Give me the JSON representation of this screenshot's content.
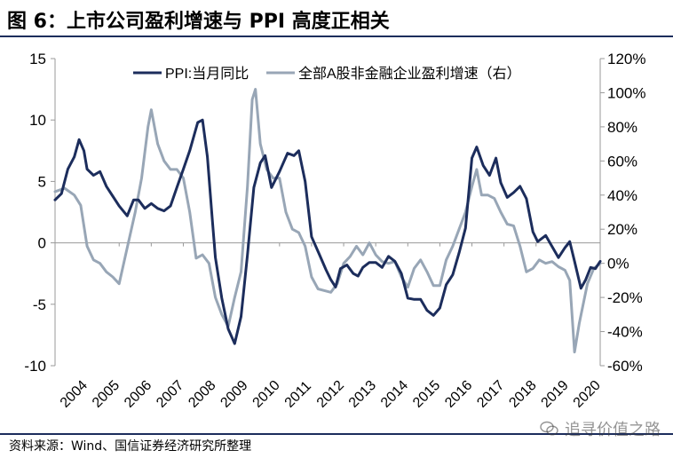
{
  "figure": {
    "title": "图 6：上市公司盈利增速与 PPI 高度正相关",
    "source": "资料来源：Wind、国信证券经济研究所整理",
    "watermark": "追寻价值之路",
    "watermark_icon": "wechat-icon"
  },
  "colors": {
    "ppi": "#1c2d5c",
    "earnings": "#98a6b6",
    "frame": "#1c2d5c",
    "axis": "#999999"
  },
  "chart_data": {
    "type": "line",
    "title": "",
    "xlabel": "",
    "ylabel": "",
    "x_ticks": [
      "2004",
      "2005",
      "2006",
      "2007",
      "2008",
      "2009",
      "2010",
      "2011",
      "2012",
      "2013",
      "2014",
      "2015",
      "2016",
      "2017",
      "2018",
      "2019",
      "2020"
    ],
    "x_range": [
      2004,
      2021
    ],
    "left_axis": {
      "range": [
        -10,
        15
      ],
      "ticks": [
        "15",
        "10",
        "5",
        "0",
        "-5",
        "-10"
      ],
      "tick_values": [
        15,
        10,
        5,
        0,
        -5,
        -10
      ]
    },
    "right_axis": {
      "range": [
        -60,
        120
      ],
      "ticks": [
        "120%",
        "100%",
        "80%",
        "60%",
        "40%",
        "20%",
        "0%",
        "-20%",
        "-40%",
        "-60%"
      ],
      "tick_values": [
        120,
        100,
        80,
        60,
        40,
        20,
        0,
        -20,
        -40,
        -60
      ]
    },
    "legend_position": "top",
    "grid": false,
    "series": [
      {
        "name": "PPI:当月同比",
        "axis": "left",
        "points": [
          [
            2004.0,
            3.5
          ],
          [
            2004.2,
            4.0
          ],
          [
            2004.4,
            6.0
          ],
          [
            2004.6,
            7.0
          ],
          [
            2004.75,
            8.4
          ],
          [
            2004.9,
            7.5
          ],
          [
            2005.0,
            6.0
          ],
          [
            2005.2,
            5.5
          ],
          [
            2005.4,
            5.8
          ],
          [
            2005.6,
            4.6
          ],
          [
            2005.8,
            3.8
          ],
          [
            2006.0,
            3.0
          ],
          [
            2006.25,
            2.2
          ],
          [
            2006.45,
            3.5
          ],
          [
            2006.6,
            3.5
          ],
          [
            2006.8,
            2.8
          ],
          [
            2007.0,
            3.2
          ],
          [
            2007.2,
            2.8
          ],
          [
            2007.4,
            2.6
          ],
          [
            2007.6,
            3.0
          ],
          [
            2007.8,
            4.5
          ],
          [
            2008.0,
            6.0
          ],
          [
            2008.2,
            7.5
          ],
          [
            2008.45,
            9.8
          ],
          [
            2008.6,
            10.0
          ],
          [
            2008.75,
            7.0
          ],
          [
            2008.9,
            2.0
          ],
          [
            2009.0,
            -1.2
          ],
          [
            2009.2,
            -4.5
          ],
          [
            2009.4,
            -7.0
          ],
          [
            2009.6,
            -8.2
          ],
          [
            2009.8,
            -6.0
          ],
          [
            2010.0,
            -1.0
          ],
          [
            2010.2,
            4.5
          ],
          [
            2010.4,
            6.5
          ],
          [
            2010.55,
            7.1
          ],
          [
            2010.75,
            4.5
          ],
          [
            2011.0,
            5.8
          ],
          [
            2011.25,
            7.3
          ],
          [
            2011.45,
            7.1
          ],
          [
            2011.6,
            7.5
          ],
          [
            2011.8,
            5.0
          ],
          [
            2012.0,
            0.5
          ],
          [
            2012.25,
            -1.0
          ],
          [
            2012.45,
            -2.2
          ],
          [
            2012.6,
            -3.0
          ],
          [
            2012.75,
            -3.6
          ],
          [
            2012.9,
            -2.1
          ],
          [
            2013.1,
            -1.8
          ],
          [
            2013.3,
            -2.5
          ],
          [
            2013.45,
            -2.7
          ],
          [
            2013.6,
            -2.0
          ],
          [
            2013.8,
            -1.6
          ],
          [
            2014.0,
            -1.6
          ],
          [
            2014.2,
            -2.0
          ],
          [
            2014.4,
            -1.1
          ],
          [
            2014.6,
            -1.5
          ],
          [
            2014.8,
            -2.5
          ],
          [
            2015.0,
            -4.5
          ],
          [
            2015.2,
            -4.6
          ],
          [
            2015.4,
            -4.6
          ],
          [
            2015.6,
            -5.5
          ],
          [
            2015.8,
            -5.9
          ],
          [
            2016.0,
            -5.3
          ],
          [
            2016.2,
            -3.4
          ],
          [
            2016.4,
            -2.6
          ],
          [
            2016.6,
            -0.8
          ],
          [
            2016.8,
            1.2
          ],
          [
            2017.0,
            6.9
          ],
          [
            2017.15,
            7.8
          ],
          [
            2017.35,
            6.3
          ],
          [
            2017.55,
            5.5
          ],
          [
            2017.75,
            6.9
          ],
          [
            2017.9,
            4.9
          ],
          [
            2018.1,
            3.7
          ],
          [
            2018.3,
            4.1
          ],
          [
            2018.5,
            4.6
          ],
          [
            2018.7,
            3.6
          ],
          [
            2018.9,
            0.9
          ],
          [
            2019.05,
            0.1
          ],
          [
            2019.3,
            0.6
          ],
          [
            2019.5,
            -0.3
          ],
          [
            2019.7,
            -1.2
          ],
          [
            2019.9,
            -0.4
          ],
          [
            2020.05,
            0.1
          ],
          [
            2020.2,
            -1.5
          ],
          [
            2020.4,
            -3.7
          ],
          [
            2020.55,
            -3.0
          ],
          [
            2020.7,
            -2.0
          ],
          [
            2020.85,
            -2.1
          ],
          [
            2021.0,
            -1.5
          ]
        ]
      },
      {
        "name": "全部A股非金融企业盈利增速（右）",
        "axis": "right",
        "points": [
          [
            2004.0,
            42
          ],
          [
            2004.3,
            44
          ],
          [
            2004.6,
            40
          ],
          [
            2004.8,
            34
          ],
          [
            2005.0,
            10
          ],
          [
            2005.2,
            2
          ],
          [
            2005.4,
            0
          ],
          [
            2005.6,
            -5
          ],
          [
            2005.8,
            -8
          ],
          [
            2006.0,
            -12
          ],
          [
            2006.2,
            5
          ],
          [
            2006.5,
            30
          ],
          [
            2006.7,
            50
          ],
          [
            2006.9,
            80
          ],
          [
            2007.0,
            90
          ],
          [
            2007.2,
            70
          ],
          [
            2007.4,
            60
          ],
          [
            2007.6,
            55
          ],
          [
            2007.8,
            55
          ],
          [
            2008.0,
            50
          ],
          [
            2008.2,
            30
          ],
          [
            2008.4,
            3
          ],
          [
            2008.6,
            5
          ],
          [
            2008.8,
            0
          ],
          [
            2009.0,
            -20
          ],
          [
            2009.2,
            -30
          ],
          [
            2009.4,
            -37
          ],
          [
            2009.6,
            -20
          ],
          [
            2009.8,
            -5
          ],
          [
            2010.0,
            45
          ],
          [
            2010.15,
            96
          ],
          [
            2010.25,
            102
          ],
          [
            2010.4,
            70
          ],
          [
            2010.6,
            55
          ],
          [
            2010.8,
            50
          ],
          [
            2011.0,
            50
          ],
          [
            2011.2,
            30
          ],
          [
            2011.4,
            20
          ],
          [
            2011.6,
            18
          ],
          [
            2011.8,
            10
          ],
          [
            2012.0,
            -8
          ],
          [
            2012.2,
            -15
          ],
          [
            2012.4,
            -16
          ],
          [
            2012.6,
            -17
          ],
          [
            2012.8,
            -12
          ],
          [
            2013.0,
            0
          ],
          [
            2013.2,
            4
          ],
          [
            2013.4,
            10
          ],
          [
            2013.6,
            5
          ],
          [
            2013.8,
            12
          ],
          [
            2014.0,
            5
          ],
          [
            2014.2,
            1
          ],
          [
            2014.4,
            0
          ],
          [
            2014.6,
            1
          ],
          [
            2014.8,
            -8
          ],
          [
            2015.0,
            -14
          ],
          [
            2015.2,
            -3
          ],
          [
            2015.4,
            2
          ],
          [
            2015.6,
            -5
          ],
          [
            2015.8,
            -13
          ],
          [
            2016.0,
            -13
          ],
          [
            2016.2,
            2
          ],
          [
            2016.4,
            10
          ],
          [
            2016.6,
            20
          ],
          [
            2016.8,
            30
          ],
          [
            2017.0,
            45
          ],
          [
            2017.15,
            55
          ],
          [
            2017.3,
            40
          ],
          [
            2017.5,
            40
          ],
          [
            2017.7,
            38
          ],
          [
            2017.9,
            30
          ],
          [
            2018.1,
            23
          ],
          [
            2018.3,
            22
          ],
          [
            2018.5,
            10
          ],
          [
            2018.7,
            -5
          ],
          [
            2018.9,
            -3
          ],
          [
            2019.1,
            2
          ],
          [
            2019.3,
            0
          ],
          [
            2019.5,
            1
          ],
          [
            2019.7,
            -2
          ],
          [
            2019.9,
            -4
          ],
          [
            2020.05,
            -10
          ],
          [
            2020.2,
            -52
          ],
          [
            2020.35,
            -35
          ],
          [
            2020.6,
            -12
          ],
          [
            2020.8,
            -3
          ],
          [
            2021.0,
            0
          ]
        ]
      }
    ]
  }
}
